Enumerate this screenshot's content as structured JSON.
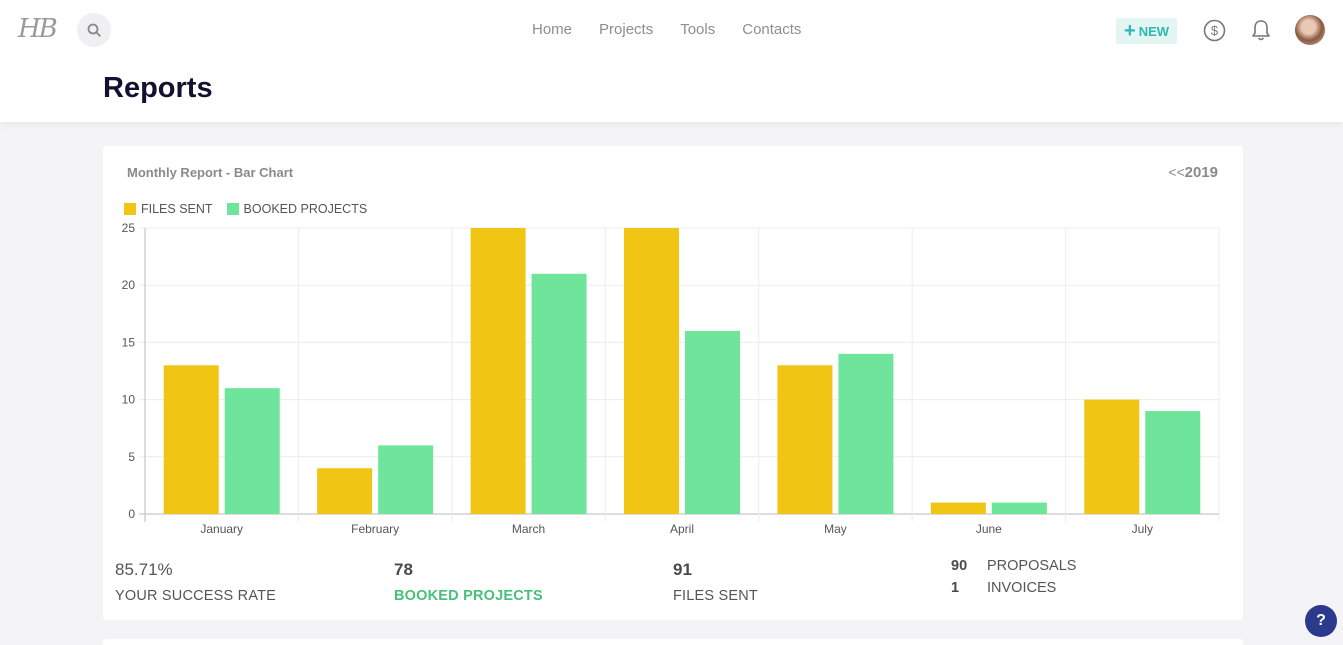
{
  "header": {
    "logo": "HB",
    "nav": [
      "Home",
      "Projects",
      "Tools",
      "Contacts"
    ],
    "new_label": "NEW",
    "page_title": "Reports"
  },
  "report": {
    "title": "Monthly Report - Bar Chart",
    "year_prefix": "<<",
    "year": "2019"
  },
  "chart_data": {
    "type": "bar",
    "categories": [
      "January",
      "February",
      "March",
      "April",
      "May",
      "June",
      "July"
    ],
    "series": [
      {
        "name": "FILES SENT",
        "color": "#f0c514",
        "values": [
          13,
          4,
          25,
          25,
          13,
          1,
          10
        ]
      },
      {
        "name": "BOOKED PROJECTS",
        "color": "#6ee59a",
        "values": [
          11,
          6,
          21,
          16,
          14,
          1,
          9
        ]
      }
    ],
    "ylim": [
      0,
      25
    ],
    "yticks": [
      0,
      5,
      10,
      15,
      20,
      25
    ],
    "grid": true,
    "legend": "top-left"
  },
  "stats": {
    "success_rate": {
      "value": "85.71%",
      "label": "YOUR SUCCESS RATE"
    },
    "booked": {
      "value": "78",
      "label": "BOOKED PROJECTS"
    },
    "files": {
      "value": "91",
      "label": "FILES SENT"
    },
    "proposals": {
      "value": "90",
      "label": "PROPOSALS"
    },
    "invoices": {
      "value": "1",
      "label": "INVOICES"
    }
  },
  "help_label": "?"
}
